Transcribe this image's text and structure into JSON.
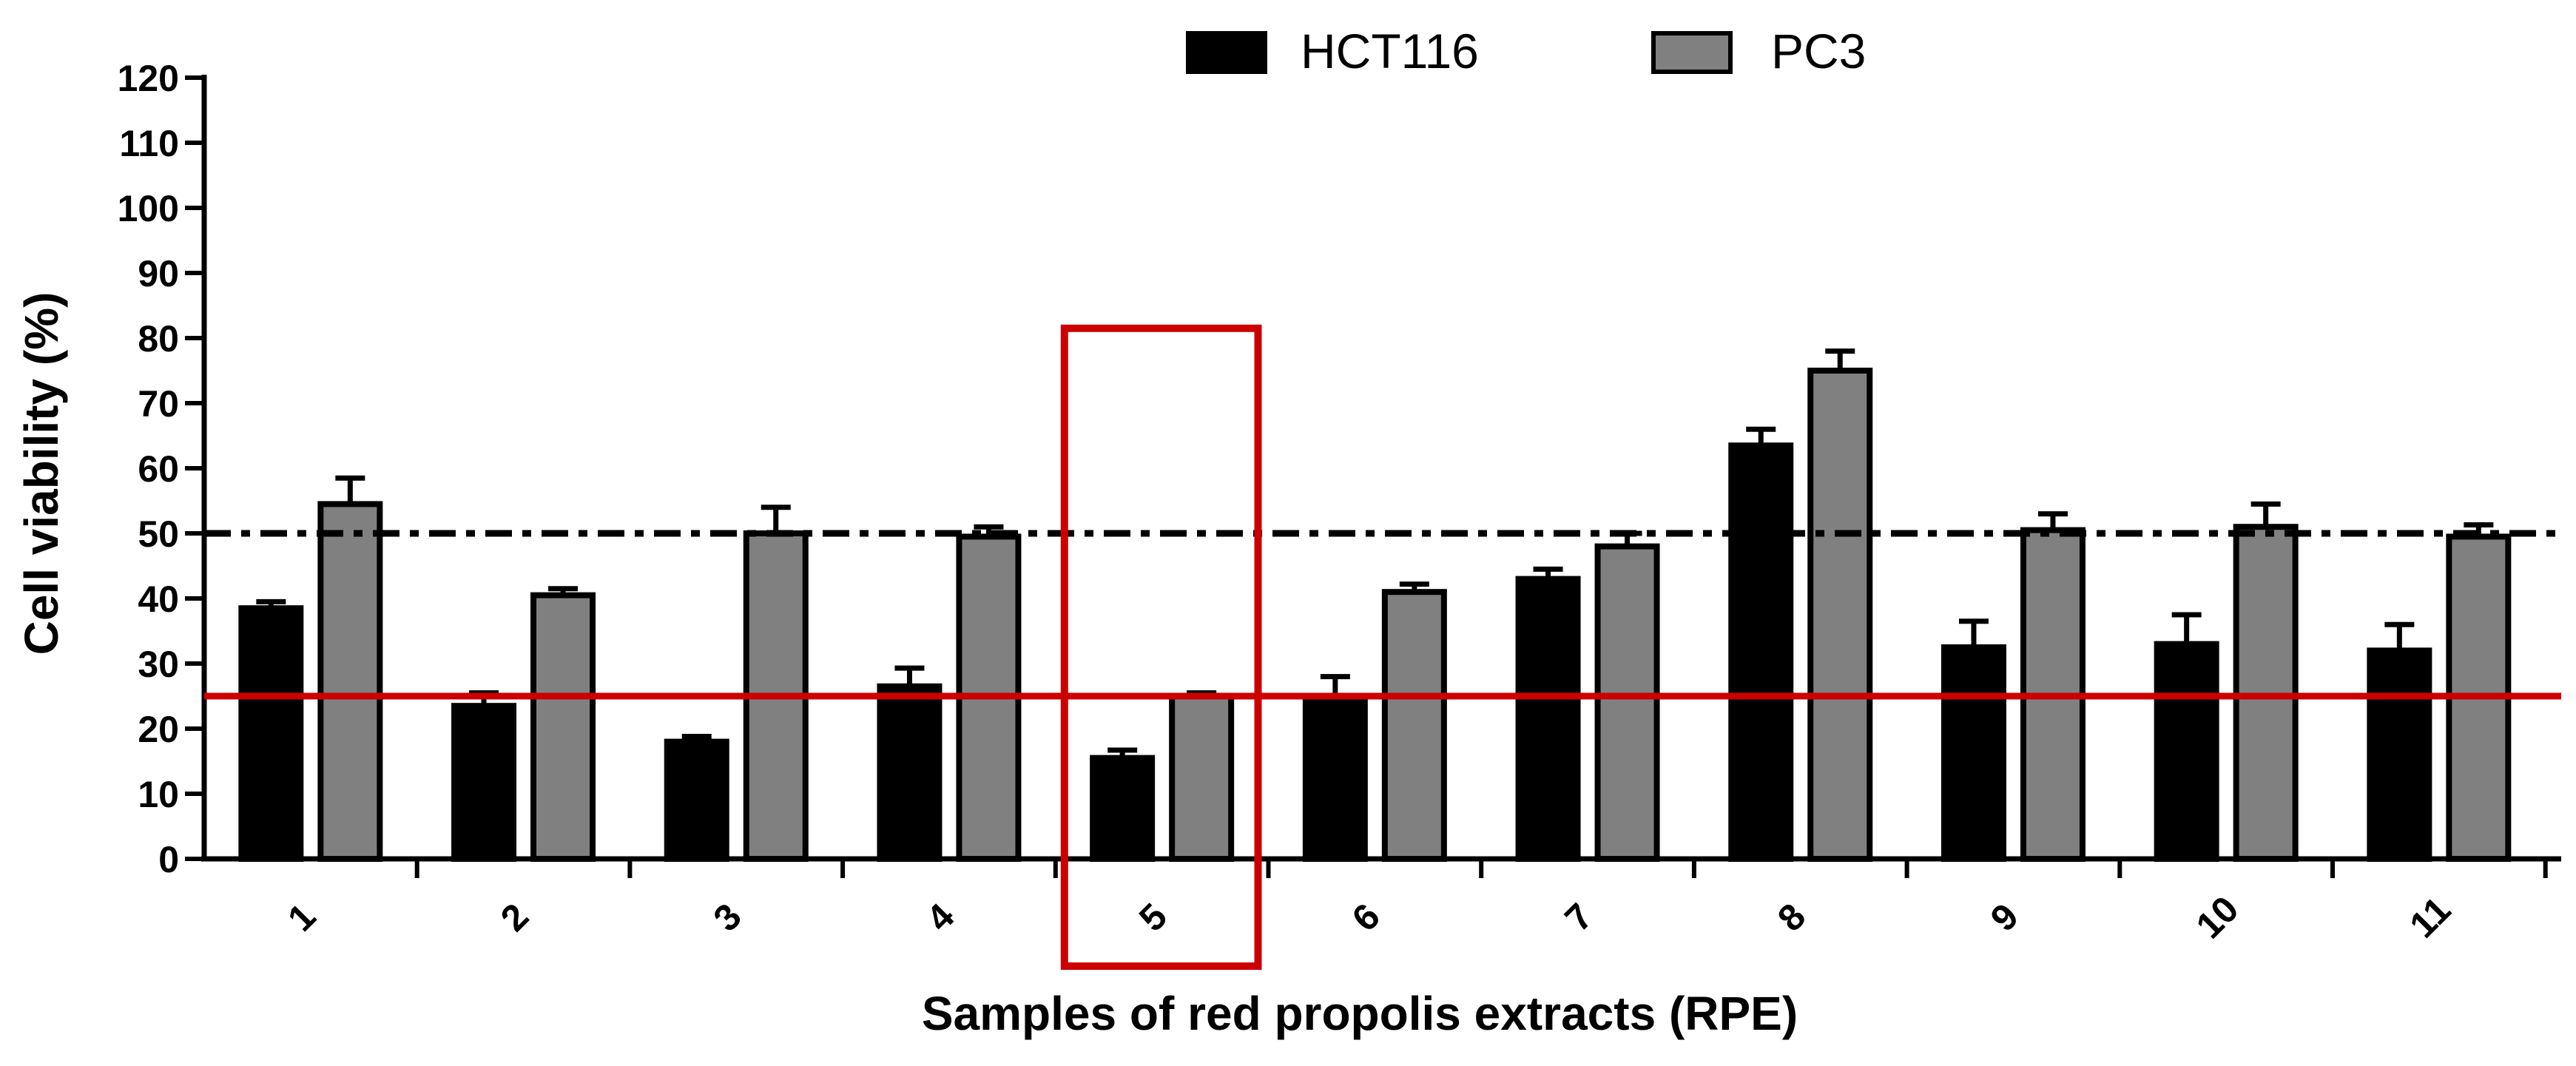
{
  "chart_data": {
    "type": "bar",
    "title": "",
    "xlabel": "Samples of red propolis extracts (RPE)",
    "ylabel": "Cell viability (%)",
    "ylim": [
      0,
      120
    ],
    "ytick_step": 10,
    "categories": [
      "1",
      "2",
      "3",
      "4",
      "5",
      "6",
      "7",
      "8",
      "9",
      "10",
      "11"
    ],
    "series": [
      {
        "name": "HCT116",
        "color": "#000000",
        "values": [
          38.5,
          23.5,
          18.0,
          26.5,
          15.5,
          25.0,
          43.0,
          63.5,
          32.5,
          33.0,
          32.0
        ],
        "errors": [
          1.0,
          2.0,
          0.8,
          2.8,
          1.2,
          3.0,
          1.5,
          2.5,
          4.0,
          4.5,
          4.0
        ]
      },
      {
        "name": "PC3",
        "color": "#808080",
        "values": [
          54.5,
          40.5,
          50.0,
          49.5,
          25.0,
          41.0,
          48.0,
          75.0,
          50.5,
          51.0,
          49.5
        ],
        "errors": [
          4.0,
          1.0,
          4.0,
          1.5,
          0.5,
          1.2,
          2.0,
          3.0,
          2.5,
          3.5,
          1.8
        ]
      }
    ],
    "reference_lines": [
      {
        "name": "50% line",
        "y": 50,
        "style": "dash-dot",
        "color": "#000000"
      },
      {
        "name": "25% line",
        "y": 25,
        "style": "solid",
        "color": "#cc0000"
      }
    ],
    "highlight": {
      "category": "5",
      "y_top": 81.5,
      "color": "#cc0000"
    },
    "legend_position": "top-center",
    "grid": false
  }
}
